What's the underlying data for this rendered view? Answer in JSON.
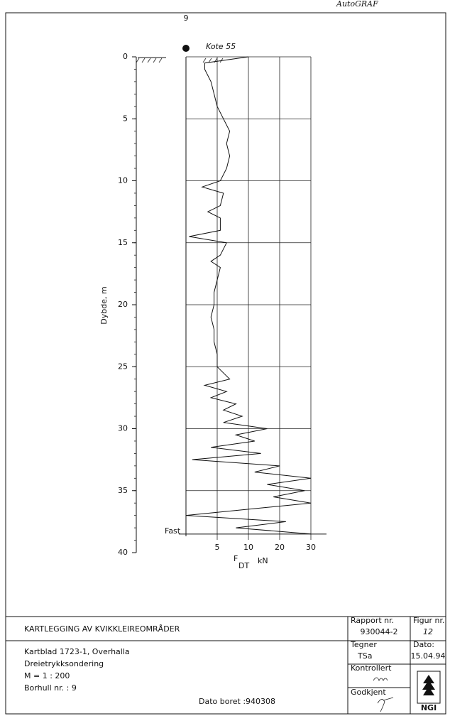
{
  "chart_data": {
    "type": "line",
    "header_label": "9",
    "brand": "AutoGRAF",
    "annotation": "Kote 55",
    "refusal_label": "Fast",
    "ylabel": "Dybde, m",
    "xlabel_symbol": "F",
    "xlabel_subscript": "DT",
    "xlabel_unit": "kN",
    "ylim": [
      0,
      40
    ],
    "yticks": [
      0,
      5,
      10,
      15,
      20,
      25,
      30,
      35,
      40
    ],
    "xlim": [
      0,
      30
    ],
    "xticks": [
      5,
      10,
      20,
      30
    ],
    "grid": true,
    "color": "#111111",
    "y": [
      0,
      0.5,
      1,
      2,
      3,
      4,
      5,
      6,
      7,
      8,
      9,
      10,
      10.5,
      11,
      12,
      12.5,
      13,
      14,
      14.5,
      15,
      16,
      16.5,
      17,
      18,
      19,
      20,
      21,
      22,
      23,
      24,
      25,
      26,
      26.5,
      27,
      27.5,
      28,
      28.5,
      29,
      29.5,
      30,
      30.5,
      31,
      31.5,
      32,
      32.5,
      33,
      33.5,
      34,
      34.5,
      35,
      35.5,
      36,
      36.5,
      37,
      37.5,
      38,
      38.5
    ],
    "values": [
      10,
      3,
      3,
      4,
      4.5,
      5,
      6,
      7,
      6.5,
      7,
      6.5,
      5.5,
      2.6,
      6,
      5.5,
      3.5,
      5.5,
      5.5,
      0.5,
      6.5,
      5.5,
      4,
      5.5,
      5,
      4.5,
      4.5,
      4,
      4.5,
      4.5,
      5,
      5,
      7,
      3,
      6.5,
      4,
      8,
      6,
      9,
      6,
      16,
      8,
      12,
      4,
      14,
      1,
      20,
      12,
      30,
      16,
      28,
      18,
      30,
      10,
      0,
      22,
      8,
      30
    ]
  },
  "title_block": {
    "project": "KARTLEGGING AV KVIKKLEIREOMRÅDER",
    "lines": [
      "Kartblad 1723-1, Overhalla",
      "Dreietrykksondering",
      "M = 1 : 200",
      "Borhull nr. : 9"
    ],
    "date_bored": "Dato boret :940308",
    "report_label": "Rapport nr.",
    "report": "930044-2",
    "figure_label": "Figur nr.",
    "figure": "12",
    "drawn_label": "Tegner",
    "drawn": "TSa",
    "date_label": "Dato:",
    "date": "15.04.94",
    "checked_label": "Kontrollert",
    "approved_label": "Godkjent",
    "logo": "NGI"
  }
}
